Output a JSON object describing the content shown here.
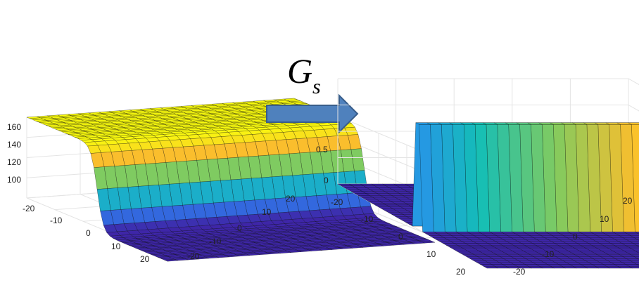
{
  "operator": {
    "symbol": "G",
    "subscript": "s"
  },
  "colors": {
    "arrow_fill": "#4f81bd",
    "arrow_stroke": "#385d8a",
    "colormap_low": "#3e26a8",
    "colormap_high": "#f9fb0e",
    "grid": "#e4e4e4",
    "mesh": "#000000"
  },
  "left_plot": {
    "type": "surface",
    "description_word": "sigmoid step surface",
    "z_ticks": [
      "160",
      "140",
      "120",
      "100"
    ],
    "x_ticks": [
      "-20",
      "-10",
      "0",
      "10",
      "20"
    ],
    "y_ticks": [
      "20",
      "10",
      "0",
      "-10",
      "-20"
    ],
    "z_range": [
      85,
      165
    ]
  },
  "right_plot": {
    "type": "surface",
    "description_word": "ridge surface (derivative)",
    "z_ticks": [
      "0.5",
      "0"
    ],
    "x_ticks": [
      "-20",
      "-10",
      "0",
      "10",
      "20"
    ],
    "y_ticks": [
      "20",
      "10",
      "0",
      "-10",
      "-20"
    ],
    "z_range": [
      0,
      1
    ]
  }
}
